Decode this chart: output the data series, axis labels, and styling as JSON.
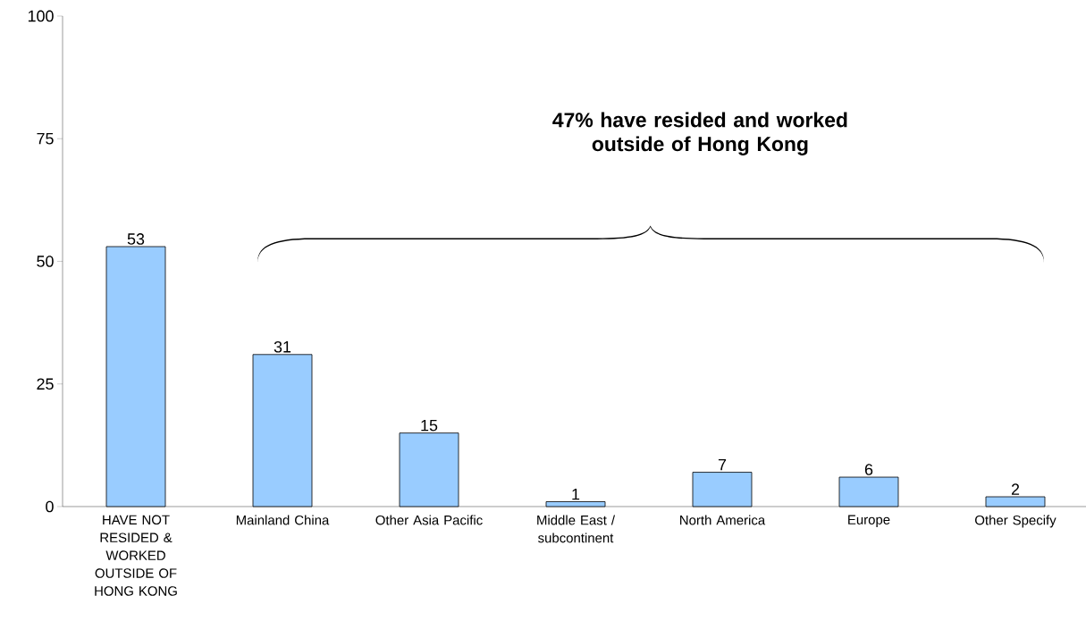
{
  "chart_data": {
    "type": "bar",
    "categories": [
      "HAVE NOT RESIDED & WORKED OUTSIDE OF HONG KONG",
      "Mainland China",
      "Other Asia Pacific",
      "Middle East / subcontinent",
      "North America",
      "Europe",
      "Other Specify"
    ],
    "values": [
      53,
      31,
      15,
      1,
      7,
      6,
      2
    ],
    "color": "#99ccff",
    "ylim": [
      0,
      100
    ],
    "yticks": [
      0,
      25,
      50,
      75,
      100
    ],
    "data_labels": true,
    "grid": false,
    "annotations": [
      "47% have resided and worked outside of Hong Kong"
    ]
  }
}
